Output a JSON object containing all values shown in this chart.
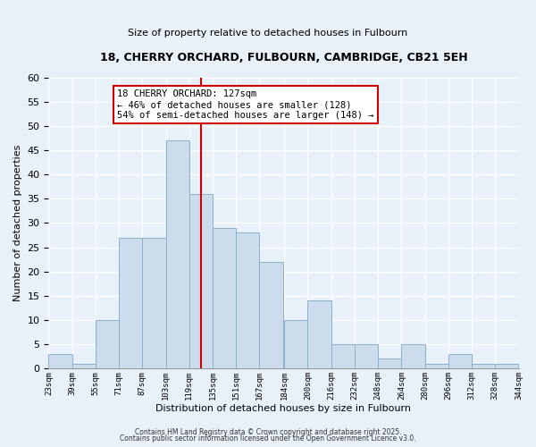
{
  "title": "18, CHERRY ORCHARD, FULBOURN, CAMBRIDGE, CB21 5EH",
  "subtitle": "Size of property relative to detached houses in Fulbourn",
  "xlabel": "Distribution of detached houses by size in Fulbourn",
  "ylabel": "Number of detached properties",
  "bar_values": [
    3,
    1,
    10,
    27,
    27,
    47,
    36,
    29,
    28,
    22,
    10,
    14,
    5,
    5,
    2,
    5,
    1,
    3,
    1,
    1
  ],
  "bin_edges": [
    23,
    39,
    55,
    71,
    87,
    103,
    119,
    135,
    151,
    167,
    184,
    200,
    216,
    232,
    248,
    264,
    280,
    296,
    312,
    328,
    344
  ],
  "tick_labels": [
    "23sqm",
    "39sqm",
    "55sqm",
    "71sqm",
    "87sqm",
    "103sqm",
    "119sqm",
    "135sqm",
    "151sqm",
    "167sqm",
    "184sqm",
    "200sqm",
    "216sqm",
    "232sqm",
    "248sqm",
    "264sqm",
    "280sqm",
    "296sqm",
    "312sqm",
    "328sqm",
    "344sqm"
  ],
  "bar_color": "#ccdcec",
  "bar_edge_color": "#8ab0cc",
  "vline_x": 127,
  "vline_color": "#cc0000",
  "ylim": [
    0,
    60
  ],
  "yticks": [
    0,
    5,
    10,
    15,
    20,
    25,
    30,
    35,
    40,
    45,
    50,
    55,
    60
  ],
  "annotation_title": "18 CHERRY ORCHARD: 127sqm",
  "annotation_line1": "← 46% of detached houses are smaller (128)",
  "annotation_line2": "54% of semi-detached houses are larger (148) →",
  "footnote1": "Contains HM Land Registry data © Crown copyright and database right 2025.",
  "footnote2": "Contains public sector information licensed under the Open Government Licence v3.0.",
  "background_color": "#e8f0f8",
  "grid_color": "#ffffff",
  "title_fontsize": 9,
  "subtitle_fontsize": 8
}
